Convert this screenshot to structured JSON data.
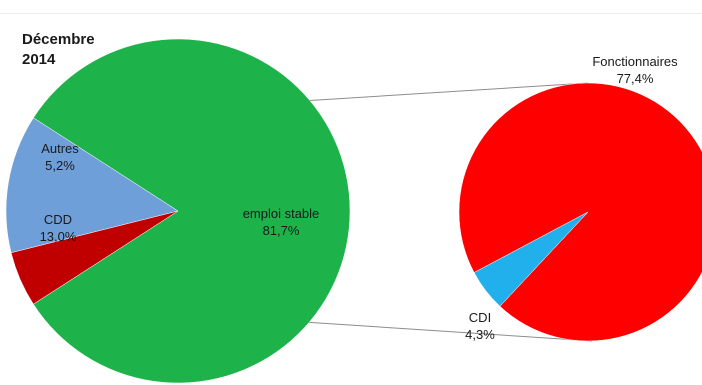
{
  "chart_data": {
    "type": "pie",
    "title": [
      "Décembre",
      "2014"
    ],
    "main_pie": {
      "slices": [
        {
          "label": "emploi stable",
          "value": 81.7,
          "value_label": "81,7%",
          "color": "#1db24a"
        },
        {
          "label": "CDD",
          "value": 13.0,
          "value_label": "13,0%",
          "color": "#6f9fd8"
        },
        {
          "label": "Autres",
          "value": 5.2,
          "value_label": "5,2%",
          "color": "#c00000"
        }
      ]
    },
    "detail_pie": {
      "of": "emploi stable",
      "slices": [
        {
          "label": "Fonctionnaires",
          "value": 77.4,
          "value_label": "77,4%",
          "color": "#ff0000"
        },
        {
          "label": "CDI",
          "value": 4.3,
          "value_label": "4,3%",
          "color": "#22b0ec"
        }
      ]
    },
    "legend": "none",
    "grid": false
  }
}
